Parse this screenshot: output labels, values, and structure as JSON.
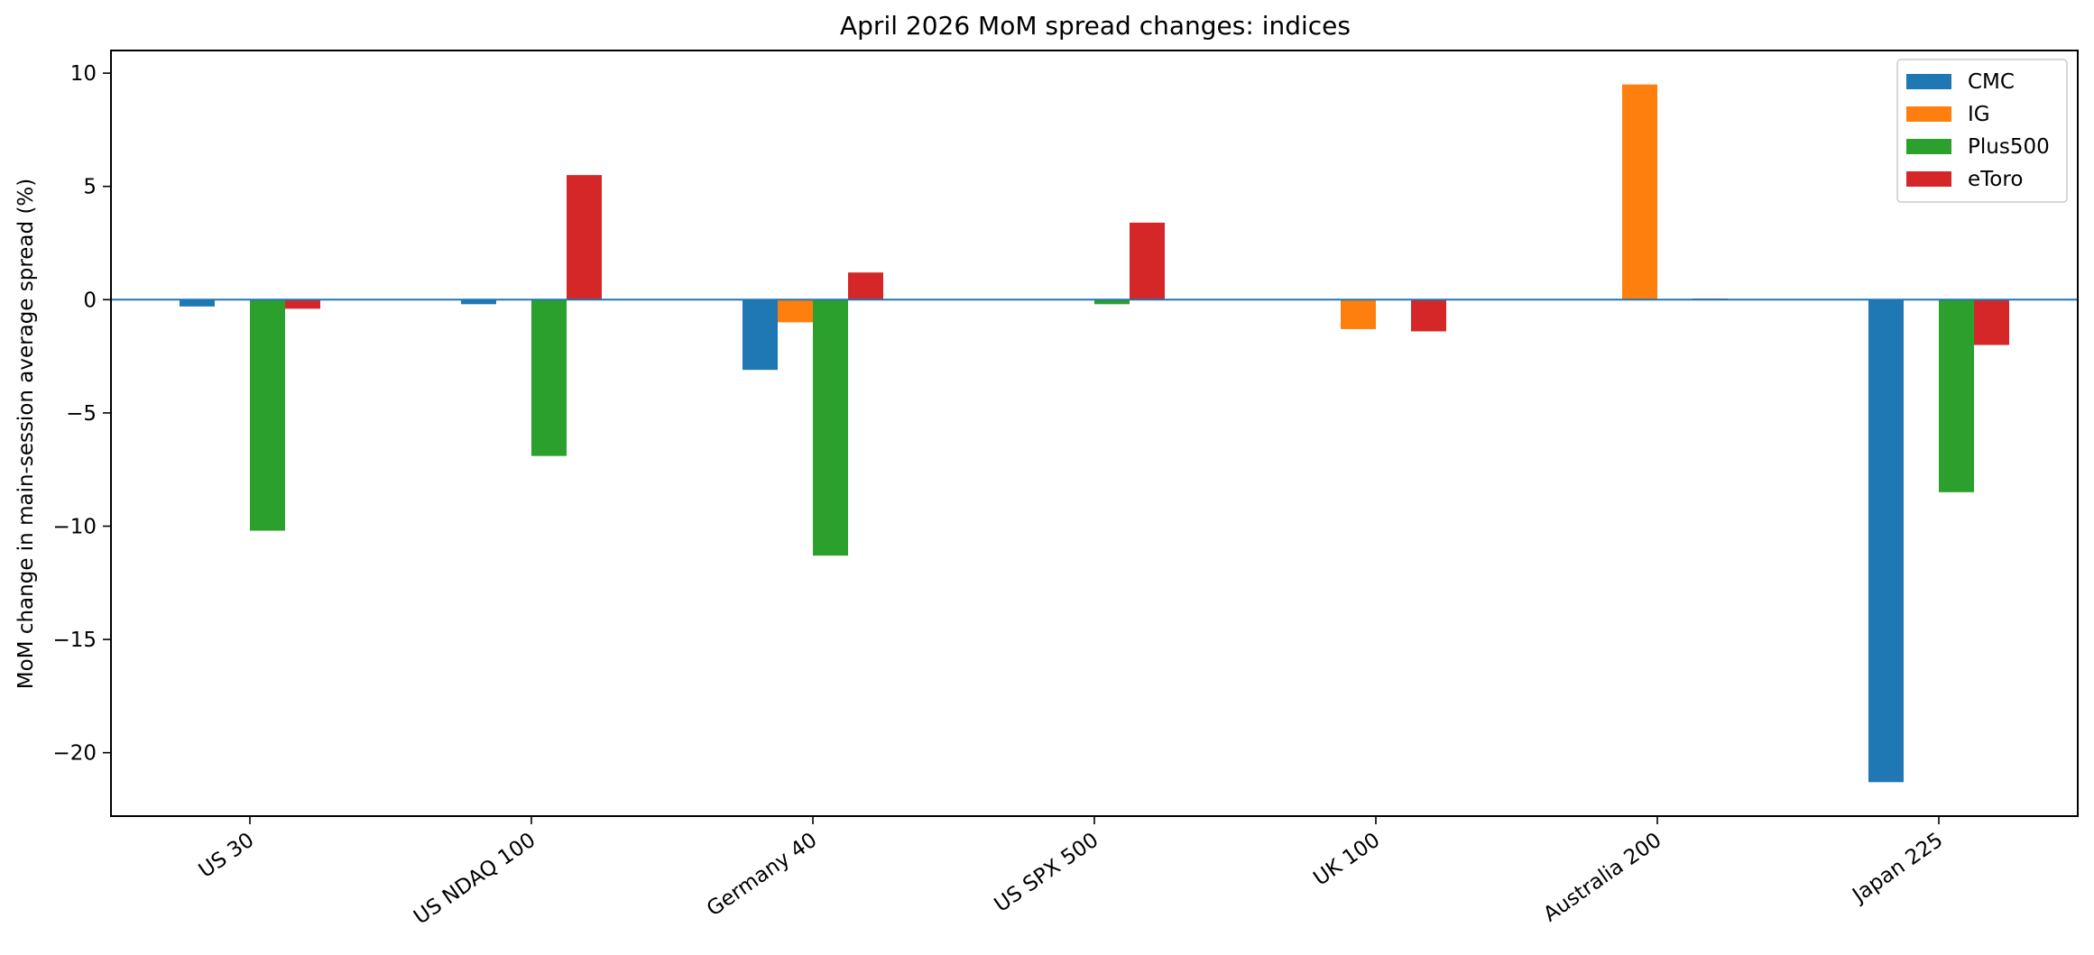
{
  "chart_data": {
    "type": "bar",
    "title": "April 2026 MoM spread changes: indices",
    "xlabel": "",
    "ylabel": "MoM change in main-session average spread (%)",
    "categories": [
      "US 30",
      "US NDAQ 100",
      "Germany 40",
      "US SPX 500",
      "UK 100",
      "Australia 200",
      "Japan 225"
    ],
    "ylim": [
      -22.8,
      11.0
    ],
    "yticks": [
      10,
      5,
      0,
      -5,
      -10,
      -15,
      -20
    ],
    "ytick_labels": [
      "10",
      "5",
      "0",
      "−5",
      "−10",
      "−15",
      "−20"
    ],
    "grid": false,
    "zero_line": true,
    "legend_position": "top-right",
    "series": [
      {
        "name": "CMC",
        "color": "#1f77b4",
        "values": [
          -0.3,
          -0.2,
          -3.1,
          null,
          null,
          null,
          -21.3
        ]
      },
      {
        "name": "IG",
        "color": "#ff7f0e",
        "values": [
          null,
          null,
          -1.0,
          null,
          -1.3,
          9.5,
          null
        ]
      },
      {
        "name": "Plus500",
        "color": "#2ca02c",
        "values": [
          -10.2,
          -6.9,
          -11.3,
          -0.2,
          null,
          null,
          -8.5
        ]
      },
      {
        "name": "eToro",
        "color": "#d62728",
        "values": [
          -0.4,
          5.5,
          1.2,
          3.4,
          -1.4,
          0.05,
          -2.0
        ]
      }
    ]
  }
}
